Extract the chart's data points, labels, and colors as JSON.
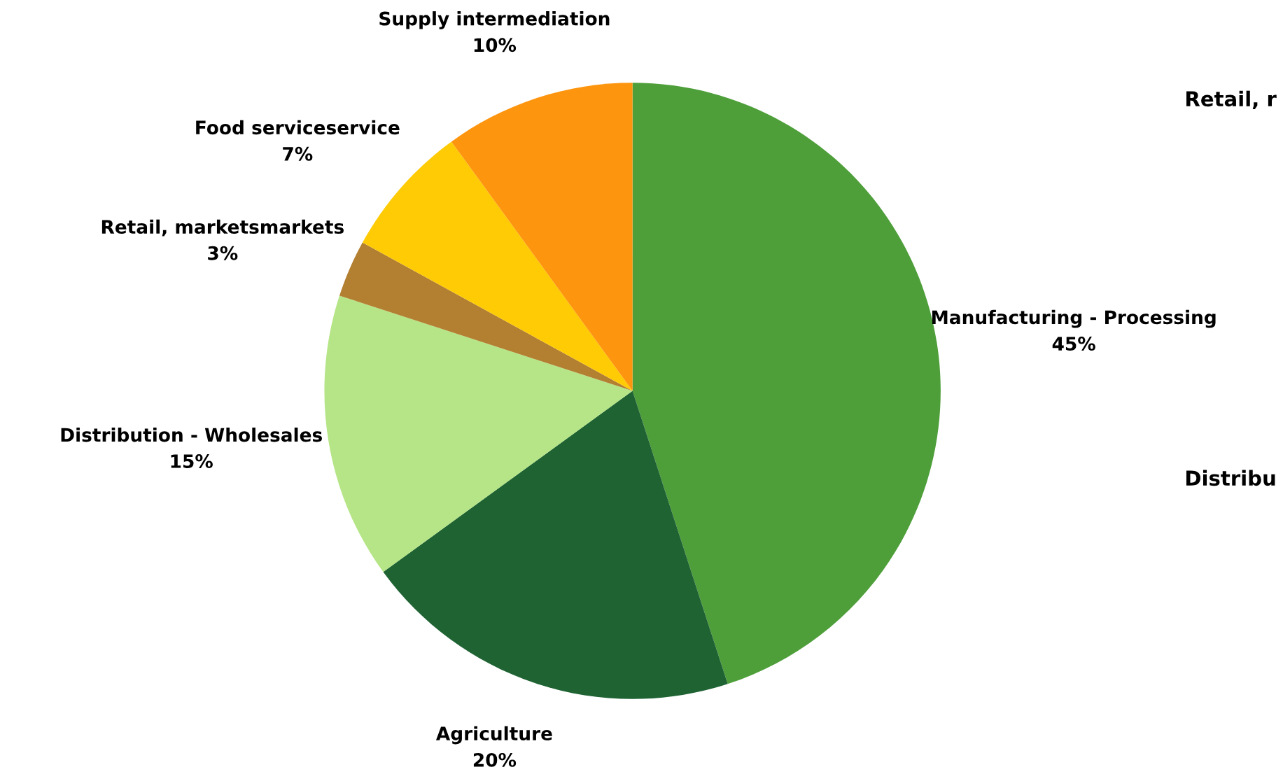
{
  "chart_data": {
    "type": "pie",
    "categories": [
      "Manufacturing - Processing",
      "Agriculture",
      "Distribution - Wholesales",
      "Retail, marketsmarkets",
      "Food serviceservice",
      "Supply intermediation"
    ],
    "values": [
      45,
      20,
      15,
      3,
      7,
      10
    ],
    "value_labels": [
      "45%",
      "20%",
      "15%",
      "3%",
      "7%",
      "10%"
    ],
    "colors": [
      "#4e9f3a",
      "#1f6333",
      "#b5e586",
      "#b37f31",
      "#fecb05",
      "#fe950f"
    ],
    "annotations": [
      "Retail, r",
      "Distribu"
    ],
    "legend": false
  }
}
